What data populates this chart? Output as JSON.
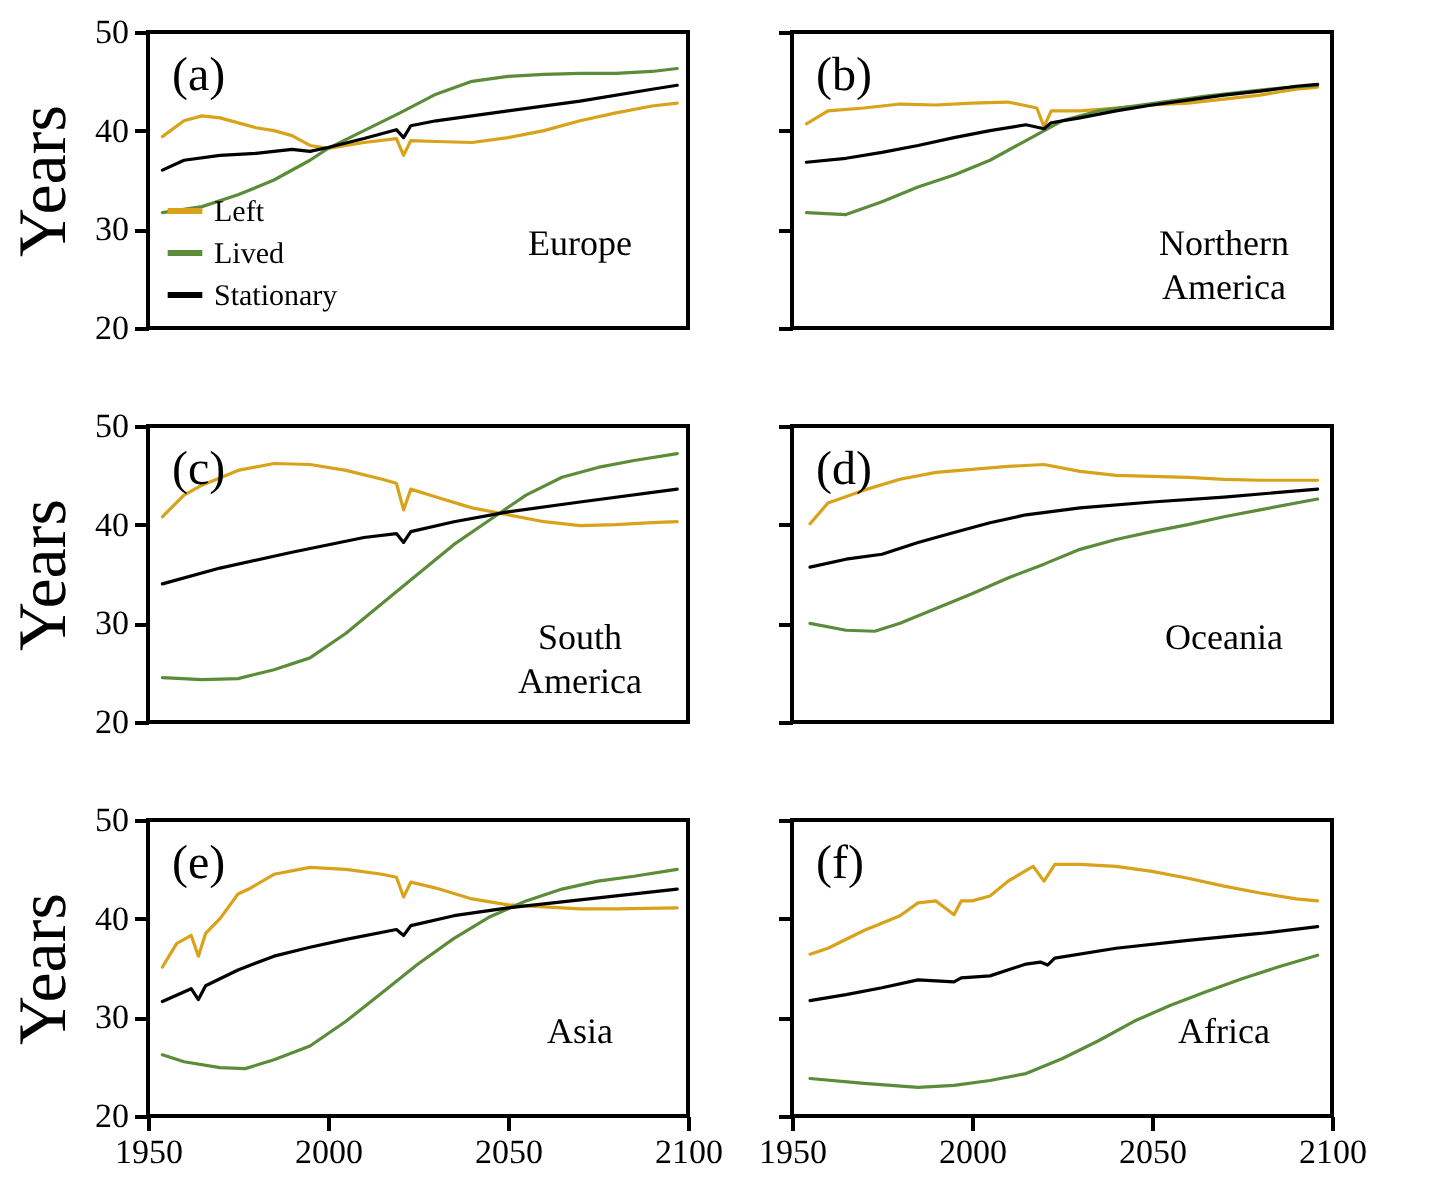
{
  "chart_data": [
    {
      "type": "line",
      "ylabel": "Years",
      "xlim": [
        1950,
        2100
      ],
      "ylim": [
        20,
        50
      ],
      "xticks": [
        1950,
        2000,
        2050,
        2100
      ],
      "yticks": [
        20,
        30,
        40,
        50
      ],
      "tick_labels": "y",
      "legend": "bottom left",
      "annotations": [
        "(a)",
        "Europe"
      ],
      "series": [
        {
          "name": "Left",
          "color": "#d8a31a",
          "x": [
            1954,
            1960,
            1965,
            1970,
            1980,
            1985,
            1990,
            1995,
            2000,
            2010,
            2019,
            2021,
            2023,
            2030,
            2040,
            2050,
            2060,
            2070,
            2080,
            2090,
            2097
          ],
          "values": [
            39.4,
            41,
            41.5,
            41.3,
            40.3,
            40,
            39.5,
            38.5,
            38.2,
            38.8,
            39.2,
            37.5,
            39,
            38.9,
            38.8,
            39.3,
            40,
            41,
            41.8,
            42.5,
            42.8
          ]
        },
        {
          "name": "Lived",
          "color": "#5b8c3a",
          "x": [
            1954,
            1965,
            1975,
            1985,
            1995,
            2000,
            2010,
            2020,
            2030,
            2040,
            2050,
            2060,
            2070,
            2080,
            2090,
            2097
          ],
          "values": [
            31.7,
            32.3,
            33.5,
            35,
            37,
            38.2,
            40,
            41.8,
            43.7,
            45,
            45.5,
            45.7,
            45.8,
            45.8,
            46,
            46.3
          ]
        },
        {
          "name": "Stationary",
          "color": "#000000",
          "x": [
            1954,
            1960,
            1970,
            1980,
            1990,
            1995,
            2000,
            2010,
            2019,
            2021,
            2023,
            2030,
            2050,
            2070,
            2090,
            2097
          ],
          "values": [
            36,
            37,
            37.5,
            37.7,
            38.1,
            37.9,
            38.3,
            39.2,
            40.1,
            39.3,
            40.5,
            41,
            42,
            43,
            44.2,
            44.6
          ]
        }
      ]
    },
    {
      "type": "line",
      "xlim": [
        1950,
        2100
      ],
      "ylim": [
        20,
        50
      ],
      "xticks": [
        1950,
        2000,
        2050,
        2100
      ],
      "yticks": [
        20,
        30,
        40,
        50
      ],
      "tick_labels": false,
      "annotations": [
        "(b)",
        "Northern America"
      ],
      "series": [
        {
          "color": "#d8a31a",
          "x": [
            1954,
            1960,
            1970,
            1980,
            1990,
            2000,
            2010,
            2018,
            2020,
            2022,
            2030,
            2040,
            2050,
            2060,
            2070,
            2080,
            2090,
            2096
          ],
          "values": [
            40.7,
            42,
            42.3,
            42.7,
            42.6,
            42.8,
            42.9,
            42.3,
            40.4,
            42,
            42,
            42.3,
            42.6,
            42.8,
            43.2,
            43.6,
            44.2,
            44.4
          ]
        },
        {
          "color": "#5b8c3a",
          "x": [
            1954,
            1965,
            1975,
            1985,
            1995,
            2005,
            2015,
            2025,
            2035,
            2045,
            2055,
            2065,
            2075,
            2085,
            2096
          ],
          "values": [
            31.7,
            31.5,
            32.8,
            34.3,
            35.5,
            37,
            39,
            41,
            42,
            42.5,
            43,
            43.5,
            43.9,
            44.3,
            44.6
          ]
        },
        {
          "color": "#000000",
          "x": [
            1954,
            1965,
            1975,
            1985,
            1995,
            2005,
            2015,
            2020,
            2022,
            2030,
            2040,
            2050,
            2060,
            2070,
            2080,
            2090,
            2096
          ],
          "values": [
            36.8,
            37.2,
            37.8,
            38.5,
            39.3,
            40,
            40.6,
            40.2,
            40.8,
            41.3,
            42,
            42.6,
            43.1,
            43.6,
            44,
            44.5,
            44.7
          ]
        }
      ]
    },
    {
      "type": "line",
      "ylabel": "Years",
      "xlim": [
        1950,
        2100
      ],
      "ylim": [
        20,
        50
      ],
      "xticks": [
        1950,
        2000,
        2050,
        2100
      ],
      "yticks": [
        20,
        30,
        40,
        50
      ],
      "tick_labels": "y",
      "annotations": [
        "(c)",
        "South America"
      ],
      "series": [
        {
          "color": "#d8a31a",
          "x": [
            1954,
            1960,
            1965,
            1975,
            1985,
            1995,
            2005,
            2015,
            2019,
            2021,
            2023,
            2030,
            2040,
            2050,
            2060,
            2070,
            2080,
            2090,
            2097
          ],
          "values": [
            40.8,
            43,
            44,
            45.5,
            46.2,
            46.1,
            45.5,
            44.6,
            44.2,
            41.5,
            43.6,
            42.8,
            41.7,
            41,
            40.3,
            39.9,
            40,
            40.2,
            40.3
          ]
        },
        {
          "color": "#5b8c3a",
          "x": [
            1954,
            1965,
            1975,
            1985,
            1995,
            2005,
            2015,
            2025,
            2035,
            2045,
            2055,
            2065,
            2075,
            2085,
            2097
          ],
          "values": [
            24.5,
            24.3,
            24.4,
            25.3,
            26.5,
            29,
            32,
            35,
            38,
            40.5,
            43,
            44.8,
            45.8,
            46.5,
            47.2
          ]
        },
        {
          "color": "#000000",
          "x": [
            1954,
            1970,
            1990,
            2010,
            2019,
            2021,
            2023,
            2035,
            2050,
            2070,
            2097
          ],
          "values": [
            34,
            35.6,
            37.2,
            38.7,
            39.1,
            38.2,
            39.3,
            40.3,
            41.3,
            42.3,
            43.6
          ]
        }
      ]
    },
    {
      "type": "line",
      "xlim": [
        1950,
        2100
      ],
      "ylim": [
        20,
        50
      ],
      "xticks": [
        1950,
        2000,
        2050,
        2100
      ],
      "yticks": [
        20,
        30,
        40,
        50
      ],
      "tick_labels": false,
      "annotations": [
        "(d)",
        "Oceania"
      ],
      "series": [
        {
          "color": "#d8a31a",
          "x": [
            1955,
            1960,
            1970,
            1980,
            1990,
            2000,
            2010,
            2020,
            2030,
            2040,
            2050,
            2060,
            2070,
            2080,
            2090,
            2096
          ],
          "values": [
            40.1,
            42.2,
            43.5,
            44.6,
            45.3,
            45.6,
            45.9,
            46.1,
            45.4,
            45,
            44.9,
            44.8,
            44.6,
            44.5,
            44.5,
            44.5
          ]
        },
        {
          "color": "#5b8c3a",
          "x": [
            1955,
            1965,
            1973,
            1980,
            1990,
            2000,
            2010,
            2020,
            2030,
            2040,
            2050,
            2060,
            2070,
            2080,
            2096
          ],
          "values": [
            30,
            29.3,
            29.2,
            30,
            31.5,
            33,
            34.6,
            36,
            37.5,
            38.5,
            39.3,
            40,
            40.8,
            41.5,
            42.6
          ]
        },
        {
          "color": "#000000",
          "x": [
            1955,
            1965,
            1975,
            1985,
            1995,
            2005,
            2015,
            2030,
            2050,
            2070,
            2096
          ],
          "values": [
            35.7,
            36.5,
            37,
            38.2,
            39.2,
            40.2,
            41,
            41.7,
            42.3,
            42.8,
            43.6
          ]
        }
      ]
    },
    {
      "type": "line",
      "ylabel": "Years",
      "xlim": [
        1950,
        2100
      ],
      "ylim": [
        20,
        50
      ],
      "xticks": [
        1950,
        2000,
        2050,
        2100
      ],
      "yticks": [
        20,
        30,
        40,
        50
      ],
      "annotations": [
        "(e)",
        "Asia"
      ],
      "series": [
        {
          "color": "#d8a31a",
          "x": [
            1954,
            1958,
            1962,
            1964,
            1966,
            1970,
            1975,
            1978,
            1985,
            1995,
            2005,
            2015,
            2019,
            2021,
            2023,
            2030,
            2040,
            2050,
            2060,
            2070,
            2080,
            2097
          ],
          "values": [
            35.1,
            37.5,
            38.3,
            36.2,
            38.5,
            40,
            42.5,
            43,
            44.5,
            45.2,
            45,
            44.5,
            44.2,
            42.2,
            43.7,
            43.1,
            42,
            41.4,
            41.2,
            41,
            41,
            41.1
          ]
        },
        {
          "color": "#5b8c3a",
          "x": [
            1954,
            1960,
            1970,
            1977,
            1985,
            1995,
            2005,
            2015,
            2025,
            2035,
            2045,
            2055,
            2065,
            2075,
            2085,
            2097
          ],
          "values": [
            26.2,
            25.5,
            24.9,
            24.8,
            25.7,
            27.1,
            29.6,
            32.5,
            35.4,
            38,
            40.2,
            41.8,
            43,
            43.8,
            44.3,
            45
          ]
        },
        {
          "color": "#000000",
          "x": [
            1954,
            1962,
            1964,
            1966,
            1975,
            1985,
            1995,
            2005,
            2019,
            2021,
            2023,
            2035,
            2050,
            2070,
            2097
          ],
          "values": [
            31.6,
            32.9,
            31.8,
            33.2,
            34.8,
            36.2,
            37.1,
            37.9,
            38.9,
            38.3,
            39.3,
            40.3,
            41.1,
            41.9,
            43
          ]
        }
      ]
    },
    {
      "type": "line",
      "xlim": [
        1950,
        2100
      ],
      "ylim": [
        20,
        50
      ],
      "xticks": [
        1950,
        2000,
        2050,
        2100
      ],
      "yticks": [
        20,
        30,
        40,
        50
      ],
      "tick_labels": "x",
      "annotations": [
        "(f)",
        "Africa"
      ],
      "series": [
        {
          "color": "#d8a31a",
          "x": [
            1955,
            1960,
            1970,
            1980,
            1985,
            1990,
            1995,
            1997,
            2000,
            2005,
            2010,
            2017,
            2020,
            2023,
            2030,
            2040,
            2050,
            2060,
            2070,
            2080,
            2090,
            2096
          ],
          "values": [
            36.4,
            37,
            38.8,
            40.3,
            41.6,
            41.8,
            40.4,
            41.8,
            41.8,
            42.3,
            43.8,
            45.3,
            43.8,
            45.5,
            45.5,
            45.3,
            44.8,
            44.1,
            43.3,
            42.6,
            42,
            41.8
          ]
        },
        {
          "color": "#5b8c3a",
          "x": [
            1955,
            1970,
            1985,
            1995,
            2005,
            2015,
            2025,
            2035,
            2045,
            2055,
            2065,
            2075,
            2085,
            2096
          ],
          "values": [
            23.8,
            23.3,
            22.9,
            23.1,
            23.6,
            24.3,
            25.8,
            27.6,
            29.6,
            31.2,
            32.6,
            33.9,
            35.1,
            36.3
          ]
        },
        {
          "color": "#000000",
          "x": [
            1955,
            1965,
            1975,
            1985,
            1995,
            1997,
            2005,
            2015,
            2019,
            2021,
            2023,
            2040,
            2060,
            2080,
            2096
          ],
          "values": [
            31.7,
            32.3,
            33,
            33.8,
            33.6,
            34,
            34.2,
            35.4,
            35.6,
            35.3,
            36,
            37,
            37.8,
            38.5,
            39.2
          ]
        }
      ]
    }
  ]
}
